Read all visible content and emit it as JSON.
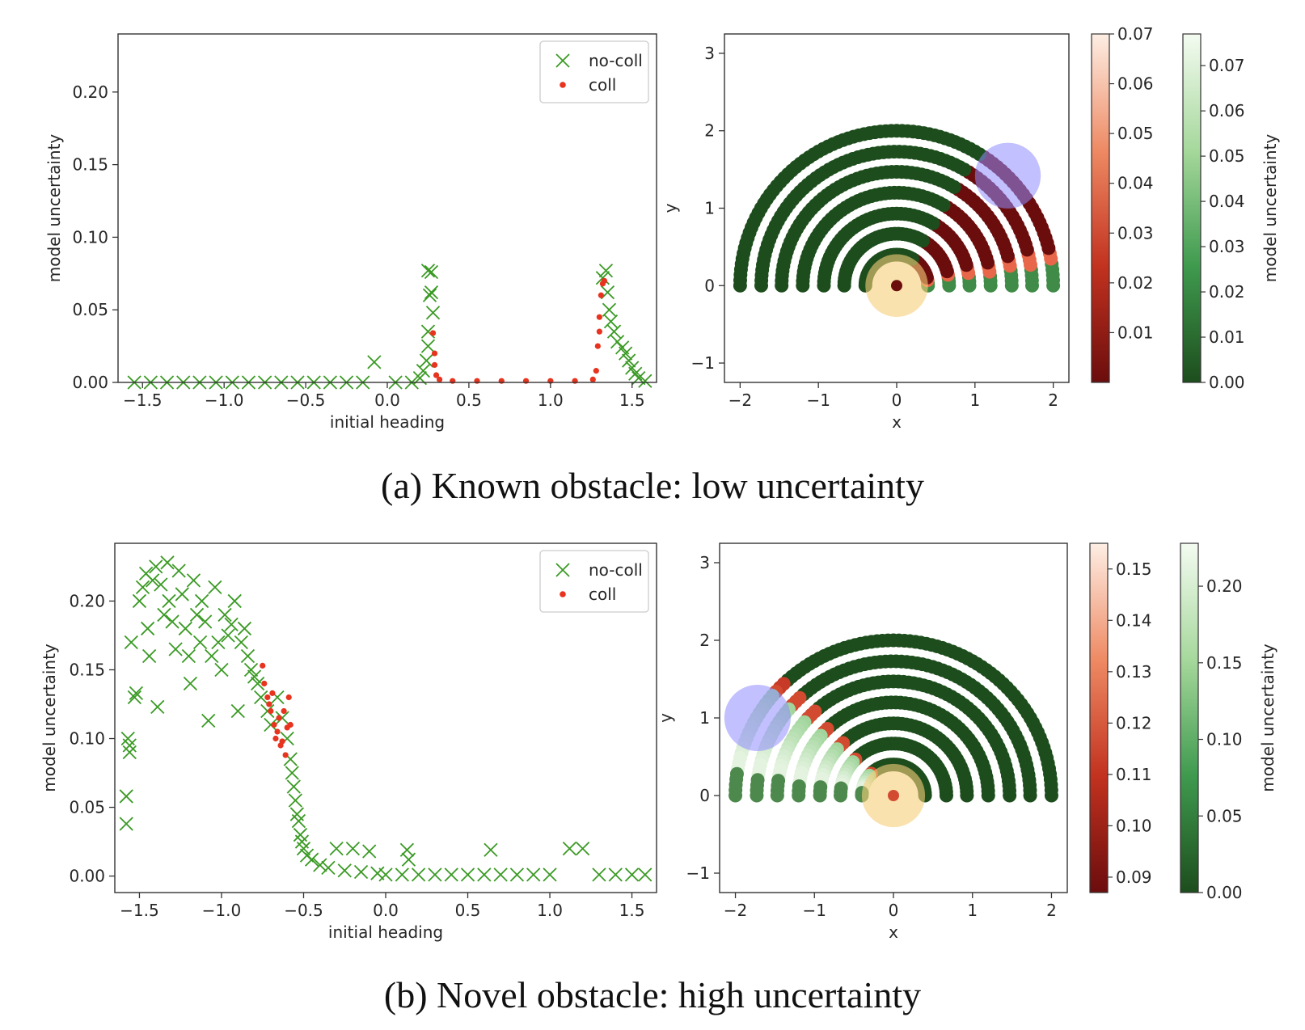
{
  "colors": {
    "no_coll": "#3a9a24",
    "coll": "#e8331e",
    "dark_green": "#1d4d1d",
    "dark_red": "#6b0d0d",
    "obstacle": "#8f8cff",
    "robot": "#f7cf7a"
  },
  "captions": {
    "a": "(a) Known obstacle: low uncertainty",
    "b": "(b) Novel obstacle: high uncertainty"
  },
  "chart_data": [
    {
      "type": "scatter",
      "panel": "a-left",
      "xlabel": "initial heading",
      "ylabel": "model uncertainty",
      "xlim": [
        -1.65,
        1.65
      ],
      "ylim": [
        0,
        0.24
      ],
      "xticks": [
        "−1.5",
        "−1.0",
        "−0.5",
        "0.0",
        "0.5",
        "1.0",
        "1.5"
      ],
      "xtick_values": [
        -1.5,
        -1.0,
        -0.5,
        0.0,
        0.5,
        1.0,
        1.5
      ],
      "yticks": [
        "0.00",
        "0.05",
        "0.10",
        "0.15",
        "0.20"
      ],
      "ytick_values": [
        0.0,
        0.05,
        0.1,
        0.15,
        0.2
      ],
      "legend": {
        "position": "top-right",
        "entries": [
          "no-coll",
          "coll"
        ]
      },
      "series": [
        {
          "name": "no-coll",
          "marker": "x",
          "points": [
            [
              -1.55,
              0.0
            ],
            [
              -1.45,
              0.0
            ],
            [
              -1.35,
              0.0
            ],
            [
              -1.25,
              0.0
            ],
            [
              -1.15,
              0.0
            ],
            [
              -1.05,
              0.0
            ],
            [
              -0.95,
              0.0
            ],
            [
              -0.85,
              0.0
            ],
            [
              -0.75,
              0.0
            ],
            [
              -0.65,
              0.0
            ],
            [
              -0.55,
              0.0
            ],
            [
              -0.45,
              0.0
            ],
            [
              -0.35,
              0.0
            ],
            [
              -0.25,
              0.0
            ],
            [
              -0.15,
              0.0
            ],
            [
              -0.08,
              0.014
            ],
            [
              0.05,
              0.0
            ],
            [
              0.15,
              0.0
            ],
            [
              0.2,
              0.003
            ],
            [
              0.22,
              0.008
            ],
            [
              0.24,
              0.015
            ],
            [
              0.25,
              0.025
            ],
            [
              0.25,
              0.035
            ],
            [
              0.26,
              0.06
            ],
            [
              0.25,
              0.077
            ],
            [
              0.27,
              0.076
            ],
            [
              0.27,
              0.062
            ],
            [
              0.28,
              0.048
            ],
            [
              1.32,
              0.072
            ],
            [
              1.34,
              0.077
            ],
            [
              1.35,
              0.062
            ],
            [
              1.36,
              0.05
            ],
            [
              1.37,
              0.042
            ],
            [
              1.39,
              0.035
            ],
            [
              1.41,
              0.028
            ],
            [
              1.44,
              0.024
            ],
            [
              1.46,
              0.02
            ],
            [
              1.48,
              0.015
            ],
            [
              1.5,
              0.01
            ],
            [
              1.52,
              0.006
            ],
            [
              1.54,
              0.003
            ],
            [
              1.58,
              0.001
            ]
          ]
        },
        {
          "name": "coll",
          "marker": "dot",
          "points": [
            [
              0.28,
              0.034
            ],
            [
              0.29,
              0.02
            ],
            [
              0.29,
              0.012
            ],
            [
              0.3,
              0.005
            ],
            [
              0.32,
              0.002
            ],
            [
              0.4,
              0.001
            ],
            [
              0.55,
              0.001
            ],
            [
              0.7,
              0.001
            ],
            [
              0.85,
              0.001
            ],
            [
              1.0,
              0.001
            ],
            [
              1.15,
              0.001
            ],
            [
              1.26,
              0.002
            ],
            [
              1.28,
              0.008
            ],
            [
              1.29,
              0.025
            ],
            [
              1.3,
              0.035
            ],
            [
              1.3,
              0.045
            ],
            [
              1.31,
              0.06
            ],
            [
              1.32,
              0.068
            ],
            [
              1.33,
              0.07
            ]
          ]
        }
      ]
    },
    {
      "type": "scatter",
      "panel": "a-right",
      "xlabel": "x",
      "ylabel": "y",
      "xlim": [
        -2.2,
        2.2
      ],
      "ylim": [
        -1.25,
        3.25
      ],
      "xticks": [
        "−2",
        "−1",
        "0",
        "1",
        "2"
      ],
      "xtick_values": [
        -2,
        -1,
        0,
        1,
        2
      ],
      "yticks": [
        "−1",
        "0",
        "1",
        "2",
        "3"
      ],
      "ytick_values": [
        -1,
        0,
        1,
        2,
        3
      ],
      "arcs": {
        "radii": [
          0.4,
          0.67,
          0.93,
          1.2,
          1.47,
          1.73,
          2.0
        ],
        "split_angle_deg": 58
      },
      "obstacle": {
        "x": 1.42,
        "y": 1.42,
        "r": 0.42
      },
      "robot": {
        "x": 0.0,
        "y": 0.0,
        "r": 0.4
      },
      "colorbars": [
        {
          "cmap": "Reds_r",
          "ticks": [
            "0.01",
            "0.02",
            "0.03",
            "0.04",
            "0.05",
            "0.06",
            "0.07"
          ],
          "tick_values": [
            0.01,
            0.02,
            0.03,
            0.04,
            0.05,
            0.06,
            0.07
          ],
          "range": [
            0.0,
            0.07
          ],
          "label": ""
        },
        {
          "cmap": "Greens_r",
          "ticks": [
            "0.00",
            "0.01",
            "0.02",
            "0.03",
            "0.04",
            "0.05",
            "0.06",
            "0.07"
          ],
          "tick_values": [
            0.0,
            0.01,
            0.02,
            0.03,
            0.04,
            0.05,
            0.06,
            0.07
          ],
          "range": [
            0.0,
            0.077
          ],
          "label": "model uncertainty"
        }
      ]
    },
    {
      "type": "scatter",
      "panel": "b-left",
      "xlabel": "initial heading",
      "ylabel": "model uncertainty",
      "xlim": [
        -1.65,
        1.65
      ],
      "ylim": [
        -0.012,
        0.242
      ],
      "xticks": [
        "−1.5",
        "−1.0",
        "−0.5",
        "0.0",
        "0.5",
        "1.0",
        "1.5"
      ],
      "xtick_values": [
        -1.5,
        -1.0,
        -0.5,
        0.0,
        0.5,
        1.0,
        1.5
      ],
      "yticks": [
        "0.00",
        "0.05",
        "0.10",
        "0.15",
        "0.20"
      ],
      "ytick_values": [
        0.0,
        0.05,
        0.1,
        0.15,
        0.2
      ],
      "legend": {
        "position": "top-right",
        "entries": [
          "no-coll",
          "coll"
        ]
      },
      "series": [
        {
          "name": "no-coll",
          "marker": "x",
          "points": [
            [
              -1.58,
              0.058
            ],
            [
              -1.58,
              0.038
            ],
            [
              -1.57,
              0.1
            ],
            [
              -1.56,
              0.095
            ],
            [
              -1.56,
              0.09
            ],
            [
              -1.55,
              0.17
            ],
            [
              -1.53,
              0.13
            ],
            [
              -1.52,
              0.133
            ],
            [
              -1.5,
              0.2
            ],
            [
              -1.48,
              0.21
            ],
            [
              -1.46,
              0.22
            ],
            [
              -1.45,
              0.18
            ],
            [
              -1.44,
              0.16
            ],
            [
              -1.42,
              0.215
            ],
            [
              -1.4,
              0.225
            ],
            [
              -1.39,
              0.123
            ],
            [
              -1.37,
              0.212
            ],
            [
              -1.35,
              0.19
            ],
            [
              -1.33,
              0.228
            ],
            [
              -1.32,
              0.2
            ],
            [
              -1.3,
              0.185
            ],
            [
              -1.28,
              0.165
            ],
            [
              -1.26,
              0.222
            ],
            [
              -1.24,
              0.205
            ],
            [
              -1.22,
              0.18
            ],
            [
              -1.2,
              0.16
            ],
            [
              -1.19,
              0.14
            ],
            [
              -1.17,
              0.215
            ],
            [
              -1.15,
              0.19
            ],
            [
              -1.13,
              0.17
            ],
            [
              -1.12,
              0.2
            ],
            [
              -1.1,
              0.185
            ],
            [
              -1.08,
              0.113
            ],
            [
              -1.06,
              0.16
            ],
            [
              -1.04,
              0.21
            ],
            [
              -1.02,
              0.17
            ],
            [
              -1.0,
              0.15
            ],
            [
              -0.98,
              0.19
            ],
            [
              -0.96,
              0.175
            ],
            [
              -0.94,
              0.183
            ],
            [
              -0.92,
              0.2
            ],
            [
              -0.9,
              0.12
            ],
            [
              -0.88,
              0.17
            ],
            [
              -0.86,
              0.18
            ],
            [
              -0.84,
              0.16
            ],
            [
              -0.82,
              0.15
            ],
            [
              -0.8,
              0.145
            ],
            [
              -0.78,
              0.14
            ],
            [
              -0.76,
              0.13
            ],
            [
              -0.72,
              0.12
            ],
            [
              -0.7,
              0.11
            ],
            [
              -0.66,
              0.13
            ],
            [
              -0.63,
              0.115
            ],
            [
              -0.6,
              0.1
            ],
            [
              -0.58,
              0.085
            ],
            [
              -0.57,
              0.075
            ],
            [
              -0.56,
              0.065
            ],
            [
              -0.55,
              0.055
            ],
            [
              -0.54,
              0.045
            ],
            [
              -0.53,
              0.04
            ],
            [
              -0.52,
              0.03
            ],
            [
              -0.51,
              0.025
            ],
            [
              -0.5,
              0.02
            ],
            [
              -0.48,
              0.015
            ],
            [
              -0.45,
              0.012
            ],
            [
              -0.4,
              0.008
            ],
            [
              -0.35,
              0.006
            ],
            [
              -0.3,
              0.02
            ],
            [
              -0.25,
              0.004
            ],
            [
              -0.2,
              0.02
            ],
            [
              -0.15,
              0.003
            ],
            [
              -0.1,
              0.018
            ],
            [
              -0.05,
              0.002
            ],
            [
              0.0,
              0.001
            ],
            [
              0.1,
              0.001
            ],
            [
              0.13,
              0.019
            ],
            [
              0.14,
              0.012
            ],
            [
              0.2,
              0.001
            ],
            [
              0.3,
              0.001
            ],
            [
              0.4,
              0.001
            ],
            [
              0.5,
              0.001
            ],
            [
              0.6,
              0.001
            ],
            [
              0.64,
              0.019
            ],
            [
              0.7,
              0.001
            ],
            [
              0.8,
              0.001
            ],
            [
              0.9,
              0.001
            ],
            [
              1.0,
              0.001
            ],
            [
              1.12,
              0.02
            ],
            [
              1.2,
              0.02
            ],
            [
              1.3,
              0.001
            ],
            [
              1.4,
              0.001
            ],
            [
              1.5,
              0.001
            ],
            [
              1.58,
              0.001
            ]
          ]
        },
        {
          "name": "coll",
          "marker": "dot",
          "points": [
            [
              -0.75,
              0.153
            ],
            [
              -0.74,
              0.14
            ],
            [
              -0.72,
              0.13
            ],
            [
              -0.71,
              0.125
            ],
            [
              -0.7,
              0.12
            ],
            [
              -0.69,
              0.133
            ],
            [
              -0.68,
              0.11
            ],
            [
              -0.67,
              0.1
            ],
            [
              -0.66,
              0.105
            ],
            [
              -0.65,
              0.115
            ],
            [
              -0.64,
              0.095
            ],
            [
              -0.63,
              0.098
            ],
            [
              -0.62,
              0.12
            ],
            [
              -0.61,
              0.088
            ],
            [
              -0.6,
              0.108
            ],
            [
              -0.59,
              0.13
            ],
            [
              -0.58,
              0.11
            ]
          ]
        }
      ]
    },
    {
      "type": "scatter",
      "panel": "b-right",
      "xlabel": "x",
      "ylabel": "y",
      "xlim": [
        -2.2,
        2.2
      ],
      "ylim": [
        -1.25,
        3.25
      ],
      "xticks": [
        "−2",
        "−1",
        "0",
        "1",
        "2"
      ],
      "xtick_values": [
        -2,
        -1,
        0,
        1,
        2
      ],
      "yticks": [
        "−1",
        "0",
        "1",
        "2",
        "3"
      ],
      "ytick_values": [
        -1,
        0,
        1,
        2,
        3
      ],
      "arcs": {
        "radii": [
          0.4,
          0.67,
          0.93,
          1.2,
          1.47,
          1.73,
          2.0
        ],
        "split_angle_deg": 132
      },
      "obstacle": {
        "x": -1.72,
        "y": 1.0,
        "r": 0.42
      },
      "robot": {
        "x": 0.0,
        "y": 0.0,
        "r": 0.4
      },
      "colorbars": [
        {
          "cmap": "Reds_r",
          "ticks": [
            "0.09",
            "0.10",
            "0.11",
            "0.12",
            "0.13",
            "0.14",
            "0.15"
          ],
          "tick_values": [
            0.09,
            0.1,
            0.11,
            0.12,
            0.13,
            0.14,
            0.15
          ],
          "range": [
            0.087,
            0.155
          ],
          "label": ""
        },
        {
          "cmap": "Greens_r",
          "ticks": [
            "0.00",
            "0.05",
            "0.10",
            "0.15",
            "0.20"
          ],
          "tick_values": [
            0.0,
            0.05,
            0.1,
            0.15,
            0.2
          ],
          "range": [
            0.0,
            0.228
          ],
          "label": "model uncertainty"
        }
      ]
    }
  ]
}
